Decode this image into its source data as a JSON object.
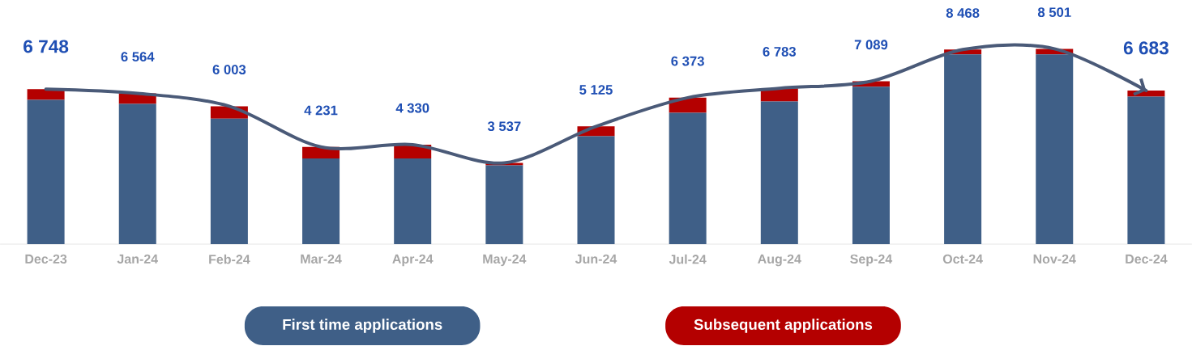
{
  "chart_data": {
    "type": "bar",
    "stacked": true,
    "categories": [
      "Dec-23",
      "Jan-24",
      "Feb-24",
      "Mar-24",
      "Apr-24",
      "May-24",
      "Jun-24",
      "Jul-24",
      "Aug-24",
      "Sep-24",
      "Oct-24",
      "Nov-24",
      "Dec-24"
    ],
    "series": [
      {
        "name": "First time applications",
        "color": "#3f5f87",
        "values": [
          6281,
          6105,
          5460,
          3726,
          3726,
          3434,
          4700,
          5719,
          6211,
          6854,
          8260,
          8260,
          6422
        ]
      },
      {
        "name": "Subsequent applications",
        "color": "#b40000",
        "values": [
          467,
          459,
          543,
          505,
          604,
          103,
          425,
          654,
          572,
          235,
          208,
          241,
          261
        ]
      },
      {
        "type": "line",
        "color": "#4a5a78",
        "values": [
          6748,
          6564,
          6003,
          4231,
          4330,
          3537,
          5125,
          6373,
          6783,
          7089,
          8468,
          8501,
          6683
        ],
        "value_labels": [
          "6 748",
          "6 564",
          "6 003",
          "4 231",
          "4 330",
          "3 537",
          "5 125",
          "6 373",
          "6 783",
          "7 089",
          "8 468",
          "8 501",
          "6 683"
        ]
      }
    ],
    "legend": "bottom"
  }
}
